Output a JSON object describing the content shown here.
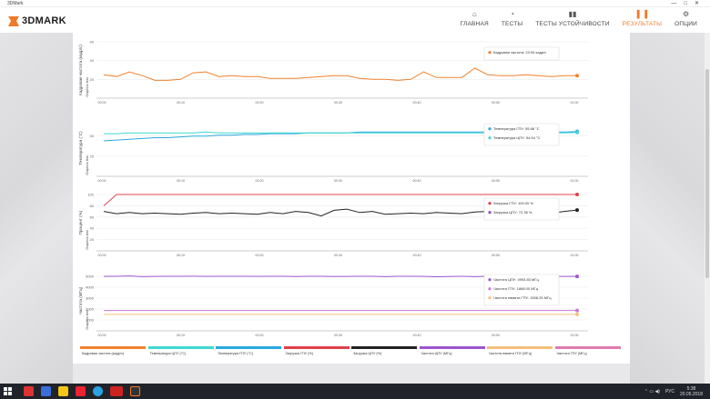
{
  "window": {
    "title": "3DMark"
  },
  "app": {
    "logo_text": "3DMARK"
  },
  "nav": [
    {
      "label": "ГЛАВНАЯ",
      "icon": "home-icon",
      "active": false
    },
    {
      "label": "ТЕСТЫ",
      "icon": "gauge-icon",
      "active": false
    },
    {
      "label": "ТЕСТЫ УСТОЙЧИВОСТИ",
      "icon": "bars-icon",
      "active": false
    },
    {
      "label": "РЕЗУЛЬТАТЫ",
      "icon": "results-icon",
      "active": true
    },
    {
      "label": "ОПЦИИ",
      "icon": "gear-icon",
      "active": false
    }
  ],
  "x_ticks": [
    "00:00",
    "00:10",
    "00:20",
    "00:30",
    "00:40",
    "00:50",
    "01:00"
  ],
  "charts": [
    {
      "ylabel": "Кадровая частота (кадр/с)",
      "section": "Graphics test",
      "yticks": [
        "60",
        "40",
        "20"
      ],
      "series": [
        {
          "name": "Кадровая частота",
          "color": "#f0822e",
          "values": [
            25,
            23,
            28,
            24,
            19,
            19,
            20,
            27,
            28,
            23,
            24,
            23,
            23,
            21,
            21,
            21,
            22,
            23,
            24,
            24,
            21,
            20,
            20,
            19,
            20,
            28,
            22,
            22,
            22,
            32,
            25,
            24,
            24,
            25,
            24,
            23,
            24,
            23.94
          ]
        }
      ],
      "tooltip": [
        {
          "label": "Кадровая частота",
          "value": "23.94 кадр/с",
          "color": "#f0822e"
        }
      ]
    },
    {
      "ylabel": "Температура (°C)",
      "section": "Graphics test",
      "yticks": [
        "50",
        "25"
      ],
      "series": [
        {
          "name": "Температура ГПУ",
          "color": "#2aa8e0",
          "values": [
            44,
            45,
            46,
            47,
            48,
            48,
            49,
            50,
            50,
            51,
            51,
            52,
            52,
            53,
            53,
            53,
            54,
            54,
            54,
            54,
            55,
            55,
            55,
            55,
            55,
            55,
            55,
            55,
            55,
            55,
            55,
            55,
            55,
            55,
            55,
            55,
            55,
            55.68
          ]
        },
        {
          "name": "Температура ЦПУ",
          "color": "#3fd8d2",
          "values": [
            53,
            53,
            54,
            54,
            54,
            54,
            54,
            54,
            55,
            54,
            54,
            54,
            54,
            54,
            54,
            54,
            54,
            54,
            54,
            54,
            54,
            54,
            54,
            54,
            54,
            54,
            54,
            54,
            54,
            54,
            54,
            54,
            54,
            54,
            54,
            54,
            54,
            54.54
          ]
        }
      ],
      "tooltip": [
        {
          "label": "Температура ГПУ",
          "value": "55.68 °C",
          "color": "#2aa8e0"
        },
        {
          "label": "Температура ЦПУ",
          "value": "54.54 °C",
          "color": "#3fd8d2"
        }
      ]
    },
    {
      "ylabel": "Процент (%)",
      "section": "Graphics test",
      "yticks": [
        "100",
        "80",
        "60",
        "40",
        "20"
      ],
      "series": [
        {
          "name": "Загрузка ГПУ",
          "color": "#e0404a",
          "values": [
            80,
            100,
            100,
            100,
            100,
            100,
            100,
            100,
            100,
            100,
            100,
            100,
            100,
            100,
            100,
            100,
            100,
            100,
            100,
            100,
            100,
            100,
            100,
            100,
            100,
            100,
            100,
            100,
            100,
            100,
            100,
            100,
            100,
            100,
            100,
            100,
            100,
            100
          ]
        },
        {
          "name": "Загрузка ЦПУ",
          "color": "#222222",
          "values": [
            70,
            66,
            68,
            66,
            67,
            66,
            65,
            67,
            68,
            66,
            67,
            66,
            65,
            68,
            66,
            70,
            68,
            62,
            72,
            74,
            68,
            70,
            65,
            66,
            67,
            66,
            68,
            67,
            66,
            69,
            70,
            68,
            67,
            66,
            68,
            67,
            70,
            72.36
          ]
        }
      ],
      "tooltip": [
        {
          "label": "Загрузка ГПУ",
          "value": "100.00 %",
          "color": "#e0404a"
        },
        {
          "label": "Загрузка ЦПУ",
          "value": "72.36 %",
          "color": "#8b4fb8"
        }
      ]
    },
    {
      "ylabel": "Частота (МГц)",
      "section": "Graphics test",
      "yticks": [
        "5000",
        "4000",
        "3000",
        "2000",
        "1000"
      ],
      "series": [
        {
          "name": "Частота ЦПУ",
          "color": "#9a55d0",
          "values": [
            4990,
            5000,
            5030,
            4970,
            4990,
            5000,
            5000,
            5010,
            4990,
            5000,
            5000,
            5000,
            4990,
            5000,
            5000,
            4980,
            5000,
            5000,
            4980,
            4990,
            5000,
            5000,
            4970,
            5000,
            5000,
            4990,
            4960,
            4980,
            5000,
            4970,
            5000,
            4990,
            4980,
            5000,
            4990,
            5000,
            4990,
            4993.83
          ]
        },
        {
          "name": "Частота ГПУ",
          "color": "#c77bd6",
          "values": [
            1870,
            1870,
            1870,
            1870,
            1870,
            1870,
            1870,
            1870,
            1870,
            1870,
            1870,
            1870,
            1870,
            1870,
            1870,
            1870,
            1870,
            1870,
            1870,
            1870,
            1870,
            1870,
            1870,
            1870,
            1870,
            1870,
            1870,
            1870,
            1870,
            1870,
            1870,
            1870,
            1870,
            1870,
            1870,
            1870,
            1870,
            1868.0
          ]
        },
        {
          "name": "Частота памяти ГПУ",
          "color": "#f2c07a",
          "values": [
            1508,
            1508,
            1508,
            1508,
            1508,
            1508,
            1508,
            1508,
            1508,
            1508,
            1508,
            1508,
            1508,
            1508,
            1508,
            1508,
            1508,
            1508,
            1508,
            1508,
            1508,
            1508,
            1508,
            1508,
            1508,
            1508,
            1508,
            1508,
            1508,
            1508,
            1508,
            1508,
            1508,
            1508,
            1508,
            1508,
            1508,
            1508.25
          ]
        }
      ],
      "tooltip": [
        {
          "label": "Частота ЦПУ",
          "value": "4993.83 МГц",
          "color": "#9a55d0"
        },
        {
          "label": "Частота ГПУ",
          "value": "1868.00 МГц",
          "color": "#c77bd6"
        },
        {
          "label": "Частота памяти ГПУ",
          "value": "1508.25 МГц",
          "color": "#f2c07a"
        }
      ]
    }
  ],
  "legend": [
    {
      "label": "Кадровая частота (кадр/с)",
      "color": "#f0822e"
    },
    {
      "label": "Температура ЦПУ (°C)",
      "color": "#3fd8d2"
    },
    {
      "label": "Температура ГПУ (°C)",
      "color": "#2aa8e0"
    },
    {
      "label": "Загрузка ГПУ (%)",
      "color": "#e0404a"
    },
    {
      "label": "Загрузка ЦПУ (%)",
      "color": "#222222"
    },
    {
      "label": "Частота ЦПУ (МГц)",
      "color": "#9a55d0"
    },
    {
      "label": "Частота памяти ГПУ (МГц)",
      "color": "#f2c07a"
    },
    {
      "label": "Частота ГПУ (МГц)",
      "color": "#e07ab0"
    }
  ],
  "taskbar": {
    "lang": "РУС",
    "time": "5:38",
    "date": "20.05.2018"
  }
}
